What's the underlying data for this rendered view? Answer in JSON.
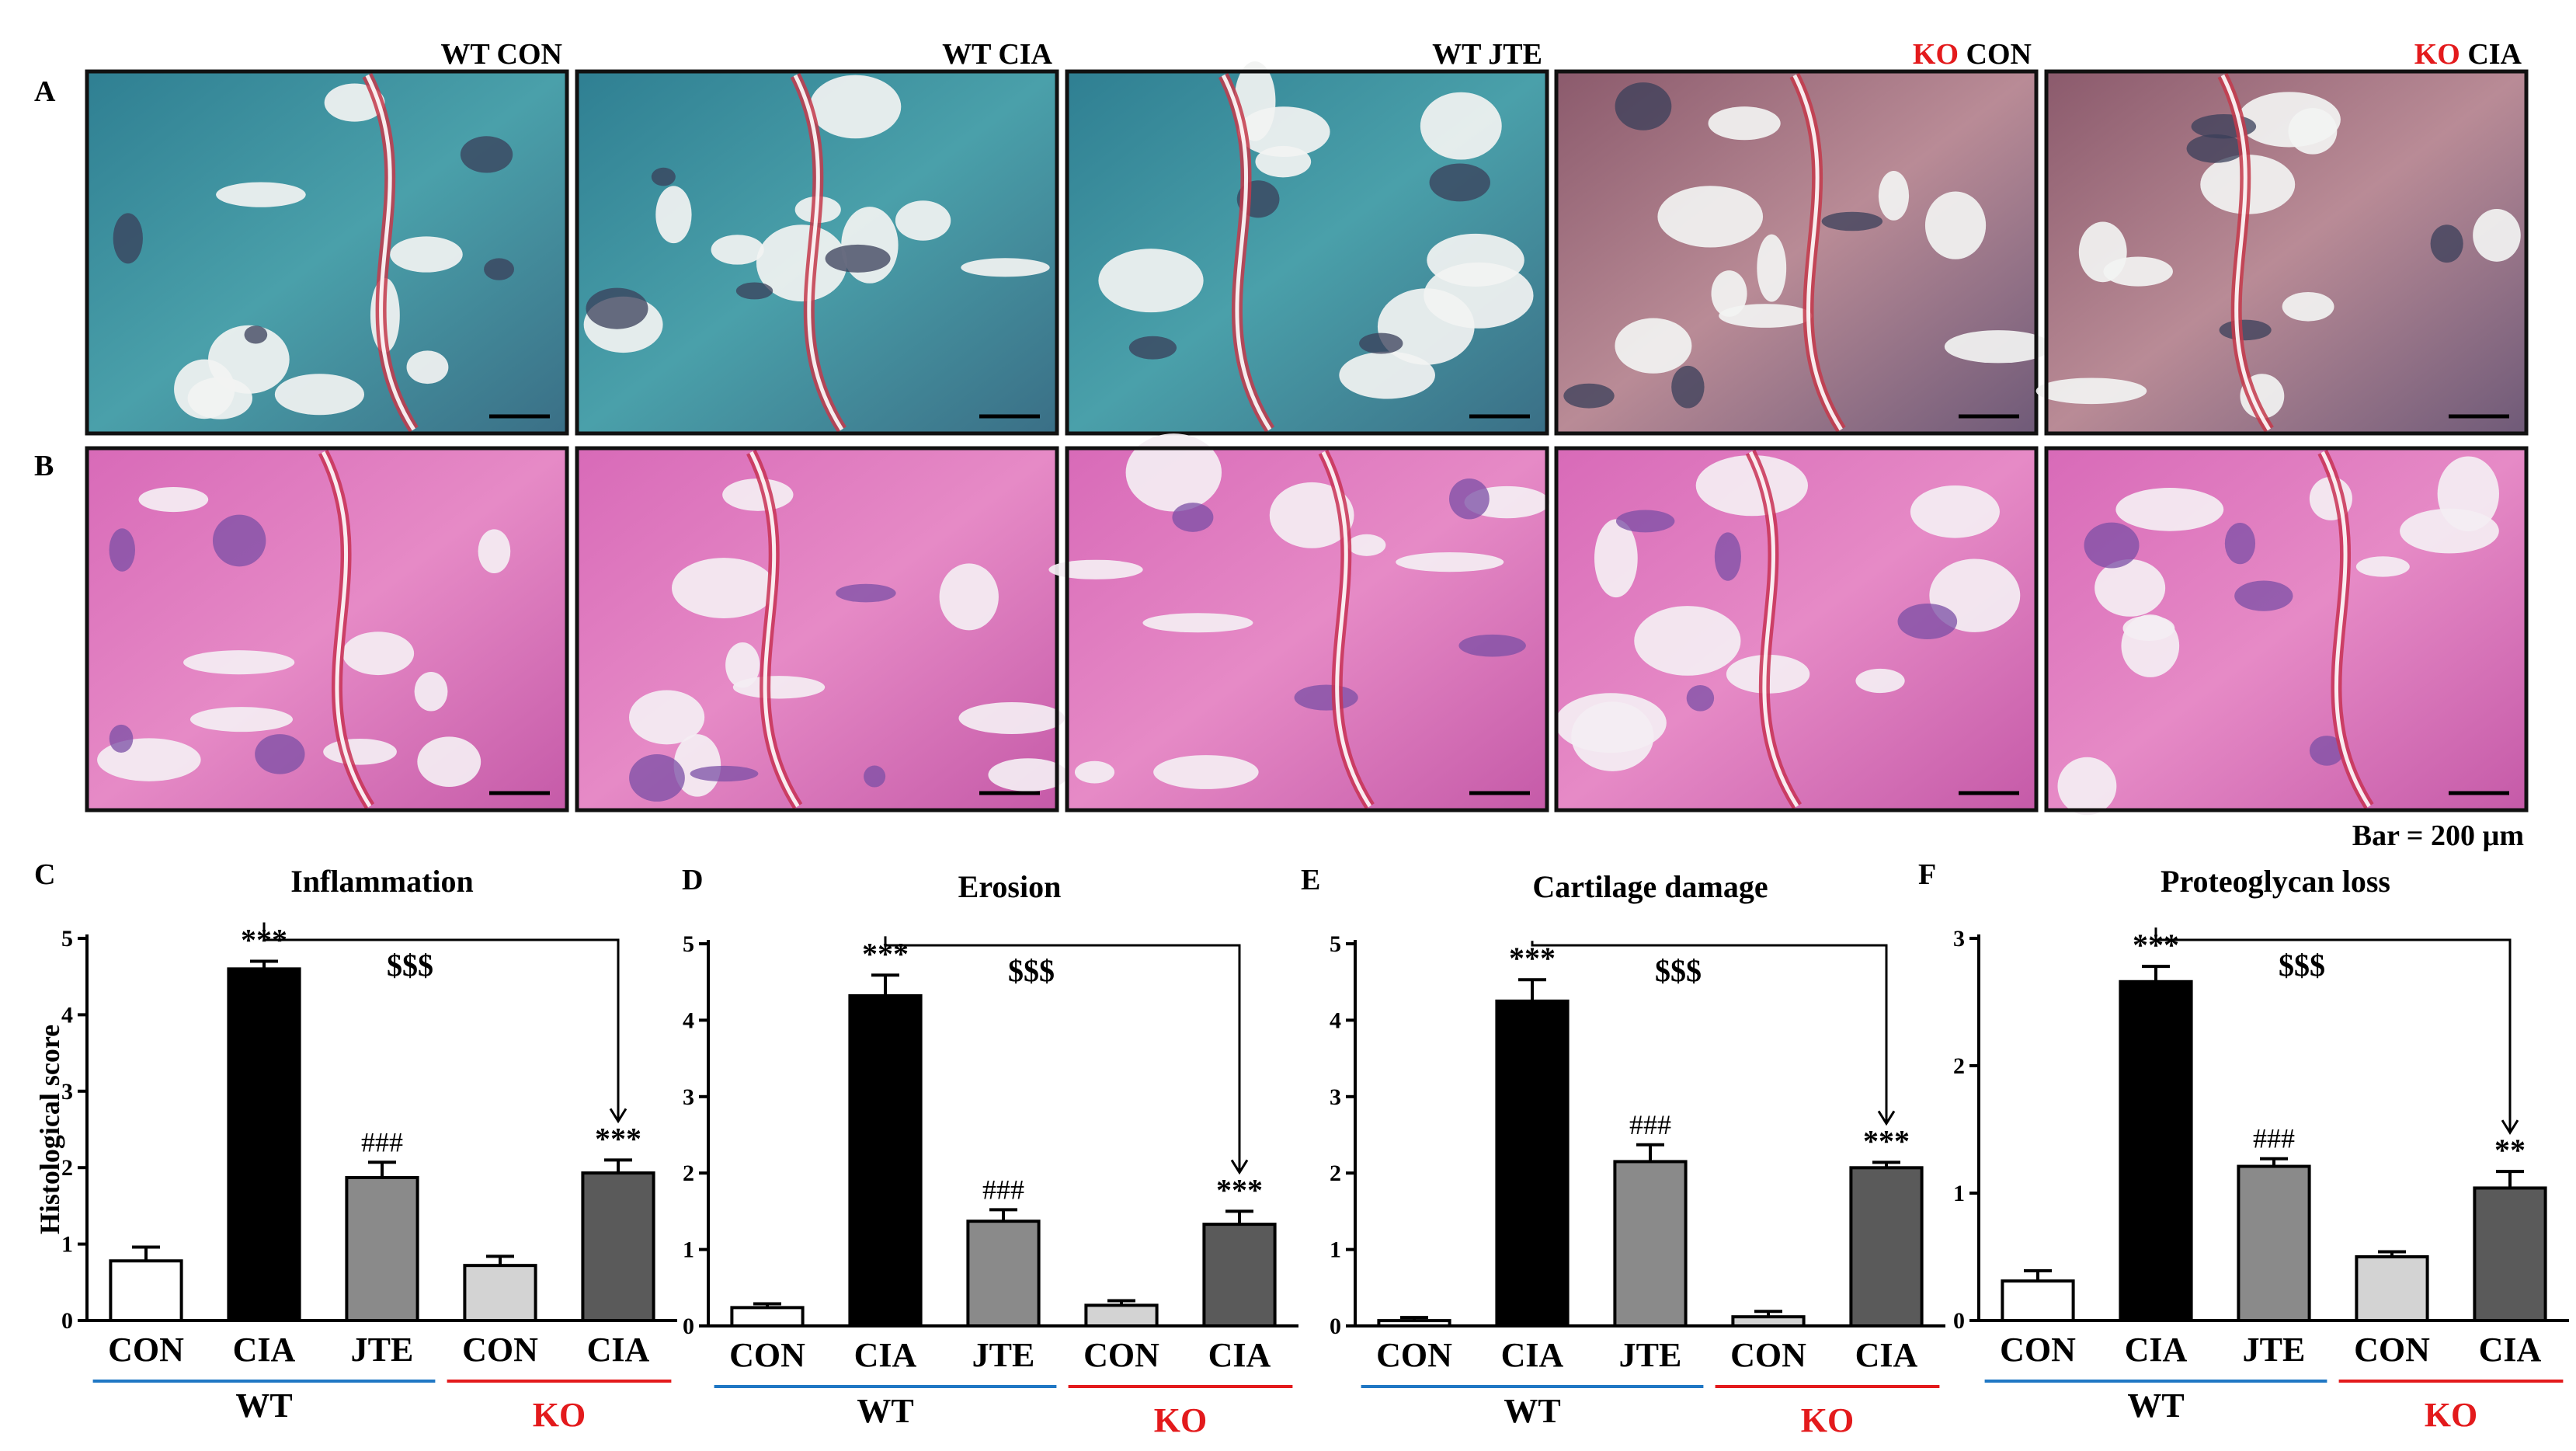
{
  "panels": {
    "row_a_letter": "A",
    "row_b_letter": "B",
    "columns": [
      {
        "prefix": "WT",
        "suffix": " CON",
        "prefix_color": "#000000"
      },
      {
        "prefix": "WT",
        "suffix": " CIA",
        "prefix_color": "#000000"
      },
      {
        "prefix": "WT",
        "suffix": " JTE",
        "prefix_color": "#000000"
      },
      {
        "prefix": "KO",
        "suffix": " CON",
        "prefix_color": "#e31a1c"
      },
      {
        "prefix": "KO",
        "suffix": " CIA",
        "prefix_color": "#e31a1c"
      }
    ],
    "scale_bar_text": "Bar = 200 µm",
    "stain_a_colors": {
      "base": "#3f8f9f",
      "accent": "#c43a4b",
      "dark": "#3a3f5a",
      "light": "#f2f3f2"
    },
    "stain_b_colors": {
      "base": "#d868b7",
      "accent": "#c83255",
      "dark": "#7b4fa6",
      "light": "#f4eef3"
    }
  },
  "group_labels": {
    "wt": "WT",
    "ko": "KO",
    "wt_line_color": "#1f77c4",
    "ko_line_color": "#e31a1c"
  },
  "chart_data": [
    {
      "panel": "C",
      "type": "bar",
      "title": "Inflammation",
      "ylabel": "Histological score",
      "categories": [
        "CON",
        "CIA",
        "JTE",
        "CON",
        "CIA"
      ],
      "values": [
        0.78,
        4.6,
        1.87,
        0.72,
        1.93
      ],
      "errors": [
        0.18,
        0.1,
        0.2,
        0.12,
        0.17
      ],
      "bar_colors": [
        "#ffffff",
        "#000000",
        "#8a8a8a",
        "#d3d3d3",
        "#5a5a5a"
      ],
      "annotations": [
        "",
        "***",
        "###",
        "",
        "***"
      ],
      "bracket_label": "$$$",
      "ylim": [
        0,
        5
      ],
      "yticks": [
        0,
        1,
        2,
        3,
        4,
        5
      ]
    },
    {
      "panel": "D",
      "type": "bar",
      "title": "Erosion",
      "ylabel": "",
      "categories": [
        "CON",
        "CIA",
        "JTE",
        "CON",
        "CIA"
      ],
      "values": [
        0.24,
        4.32,
        1.37,
        0.27,
        1.33
      ],
      "errors": [
        0.05,
        0.27,
        0.15,
        0.06,
        0.17
      ],
      "bar_colors": [
        "#ffffff",
        "#000000",
        "#8a8a8a",
        "#d3d3d3",
        "#5a5a5a"
      ],
      "annotations": [
        "",
        "***",
        "###",
        "",
        "***"
      ],
      "bracket_label": "$$$",
      "ylim": [
        0,
        5
      ],
      "yticks": [
        0,
        1,
        2,
        3,
        4,
        5
      ]
    },
    {
      "panel": "E",
      "type": "bar",
      "title": "Cartilage damage",
      "ylabel": "",
      "categories": [
        "CON",
        "CIA",
        "JTE",
        "CON",
        "CIA"
      ],
      "values": [
        0.07,
        4.25,
        2.15,
        0.12,
        2.07
      ],
      "errors": [
        0.04,
        0.28,
        0.22,
        0.07,
        0.07
      ],
      "bar_colors": [
        "#ffffff",
        "#000000",
        "#8a8a8a",
        "#d3d3d3",
        "#5a5a5a"
      ],
      "annotations": [
        "",
        "***",
        "###",
        "",
        "***"
      ],
      "bracket_label": "$$$",
      "ylim": [
        0,
        5
      ],
      "yticks": [
        0,
        1,
        2,
        3,
        4,
        5
      ]
    },
    {
      "panel": "F",
      "type": "bar",
      "title": "Proteoglycan loss",
      "ylabel": "",
      "categories": [
        "CON",
        "CIA",
        "JTE",
        "CON",
        "CIA"
      ],
      "values": [
        0.31,
        2.66,
        1.21,
        0.5,
        1.04
      ],
      "errors": [
        0.08,
        0.12,
        0.06,
        0.04,
        0.13
      ],
      "bar_colors": [
        "#ffffff",
        "#000000",
        "#8a8a8a",
        "#d3d3d3",
        "#5a5a5a"
      ],
      "annotations": [
        "",
        "***",
        "###",
        "",
        "**"
      ],
      "bracket_label": "$$$",
      "ylim": [
        0,
        3
      ],
      "yticks": [
        0,
        1,
        2,
        3
      ]
    }
  ]
}
